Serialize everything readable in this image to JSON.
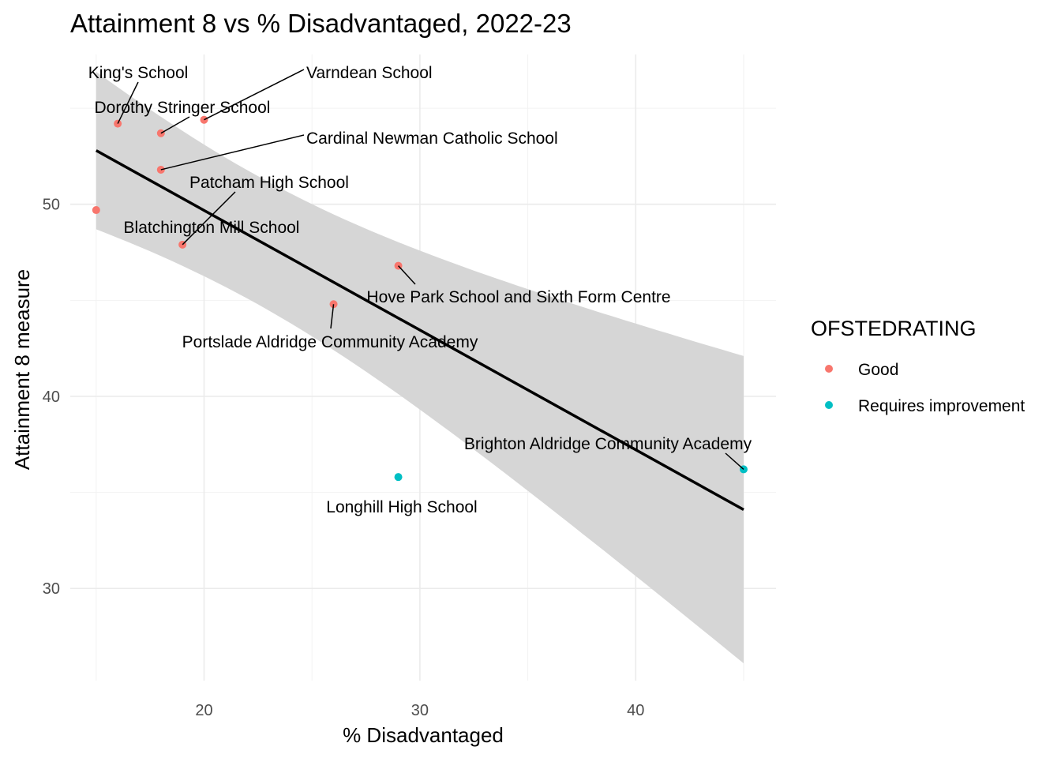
{
  "chart_data": {
    "type": "scatter",
    "title": "Attainment 8 vs % Disadvantaged, 2022-23",
    "xlabel": "% Disadvantaged",
    "ylabel": "Attainment 8 measure",
    "xlim": [
      13.8,
      46.5
    ],
    "ylim": [
      25.2,
      57.8
    ],
    "x_ticks": [
      20,
      30,
      40
    ],
    "y_ticks": [
      30,
      40,
      50
    ],
    "grid": true,
    "legend": {
      "title": "OFSTEDRATING",
      "position": "right",
      "entries": [
        {
          "label": "Good",
          "color": "#F8766D"
        },
        {
          "label": "Requires improvement",
          "color": "#00BFC4"
        }
      ]
    },
    "points": [
      {
        "name": "King's School",
        "x": 16,
        "y": 54.2,
        "rating": "Good"
      },
      {
        "name": "Varndean School",
        "x": 20,
        "y": 54.4,
        "rating": "Good"
      },
      {
        "name": "Dorothy Stringer School",
        "x": 18,
        "y": 53.7,
        "rating": "Good"
      },
      {
        "name": "Cardinal Newman Catholic School",
        "x": 18,
        "y": 51.8,
        "rating": "Good"
      },
      {
        "name": "Blatchington Mill School",
        "x": 15,
        "y": 49.7,
        "rating": "Good"
      },
      {
        "name": "Patcham High School",
        "x": 19,
        "y": 47.9,
        "rating": "Good"
      },
      {
        "name": "Hove Park School and Sixth Form Centre",
        "x": 29,
        "y": 46.8,
        "rating": "Good"
      },
      {
        "name": "Portslade Aldridge Community Academy",
        "x": 26,
        "y": 44.8,
        "rating": "Good"
      },
      {
        "name": "Brighton Aldridge Community Academy",
        "x": 45,
        "y": 36.2,
        "rating": "Requires improvement"
      },
      {
        "name": "Longhill High School",
        "x": 29,
        "y": 35.8,
        "rating": "Requires improvement"
      }
    ],
    "regression": {
      "x": [
        15,
        45
      ],
      "y": [
        52.8,
        34.1
      ],
      "ci_lower": [
        48.7,
        26.1
      ],
      "ci_upper": [
        56.9,
        42.0
      ]
    }
  }
}
